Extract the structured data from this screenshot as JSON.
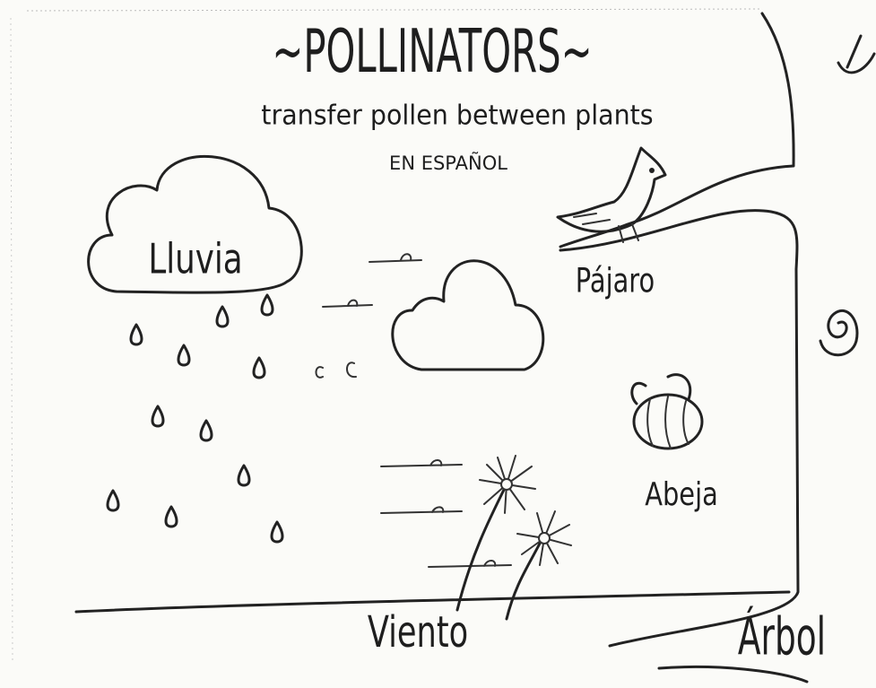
{
  "header": {
    "title": "~POLLINATORS~",
    "subtitle": "transfer pollen between plants",
    "note": "EN ESPAÑOL"
  },
  "labels": [
    {
      "text": "Lluvia"
    },
    {
      "text": "Pájaro"
    },
    {
      "text": "Abeja"
    },
    {
      "text": "Viento"
    },
    {
      "text": "Árbol"
    }
  ]
}
